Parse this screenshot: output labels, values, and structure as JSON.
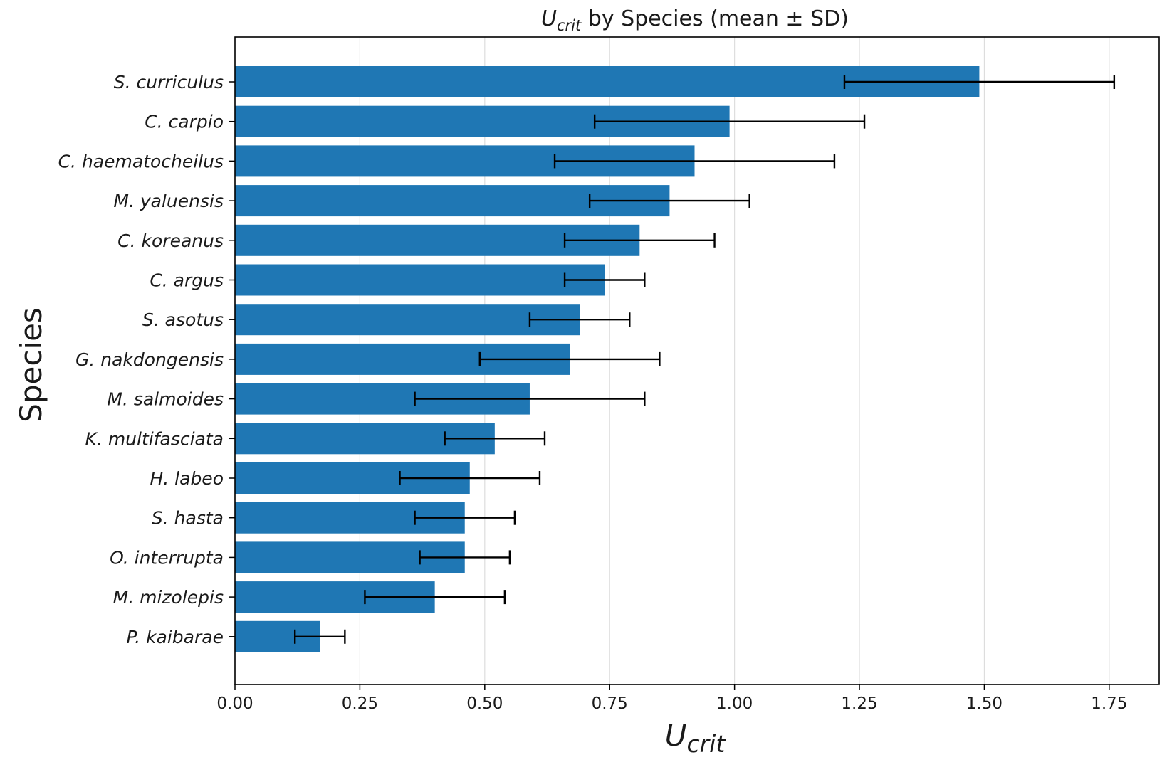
{
  "chart_data": {
    "type": "bar",
    "orientation": "horizontal",
    "title": {
      "main": "U",
      "sub": "crit",
      "rest": " by Species (mean ± SD)"
    },
    "xlabel": {
      "main": "U",
      "sub": "crit"
    },
    "ylabel": "Species",
    "xlim": [
      0,
      1.85
    ],
    "xticks": [
      0.0,
      0.25,
      0.5,
      0.75,
      1.0,
      1.25,
      1.5,
      1.75
    ],
    "xtick_labels": [
      "0.00",
      "0.25",
      "0.50",
      "0.75",
      "1.00",
      "1.25",
      "1.50",
      "1.75"
    ],
    "grid": "vertical",
    "legend": "none",
    "bar_color": "#1f77b4",
    "categories": [
      "S. curriculus",
      "C. carpio",
      "C. haematocheilus",
      "M. yaluensis",
      "C. koreanus",
      "C. argus",
      "S. asotus",
      "G. nakdongensis",
      "M. salmoides",
      "K. multifasciata",
      "H. labeo",
      "S. hasta",
      "O. interrupta",
      "M. mizolepis",
      "P. kaibarae"
    ],
    "values": [
      1.49,
      0.99,
      0.92,
      0.87,
      0.81,
      0.74,
      0.69,
      0.67,
      0.59,
      0.52,
      0.47,
      0.46,
      0.46,
      0.4,
      0.17
    ],
    "error": [
      0.27,
      0.27,
      0.28,
      0.16,
      0.15,
      0.08,
      0.1,
      0.18,
      0.23,
      0.1,
      0.14,
      0.1,
      0.09,
      0.14,
      0.05
    ]
  }
}
